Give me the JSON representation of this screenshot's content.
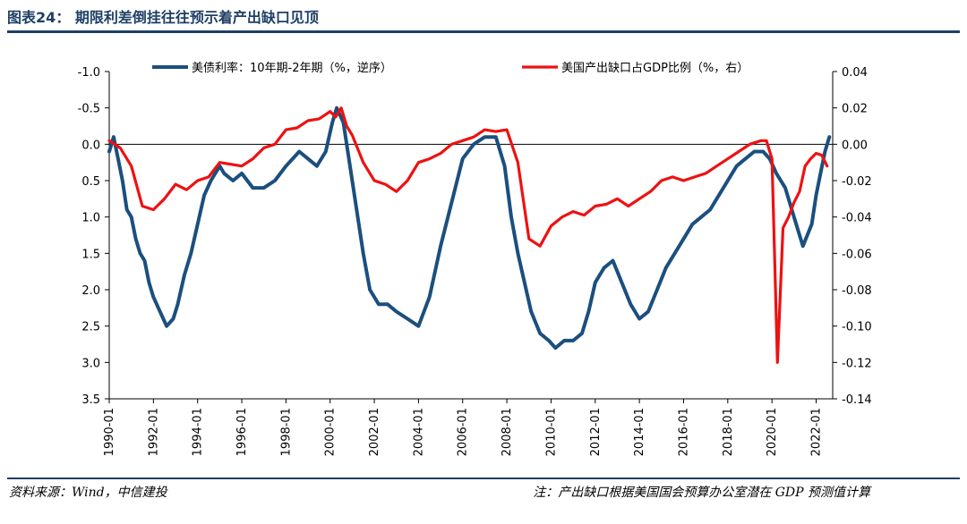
{
  "figure": {
    "title": "图表24： 期限利差倒挂往往预示着产出缺口见顶",
    "source": "资料来源：Wind，中信建投",
    "note": "注：产出缺口根据美国国会预算办公室潜在 GDP 预测值计算"
  },
  "chart_data": {
    "type": "line",
    "x_ticks": [
      "1990-01",
      "1992-01",
      "1994-01",
      "1996-01",
      "1998-01",
      "2000-01",
      "2002-01",
      "2004-01",
      "2006-01",
      "2008-01",
      "2010-01",
      "2012-01",
      "2014-01",
      "2016-01",
      "2018-01",
      "2020-01",
      "2022-01"
    ],
    "xlim": [
      1990.0,
      2022.75
    ],
    "y_left": {
      "ylim": [
        -1.0,
        3.5
      ],
      "inverted": true,
      "ticks": [
        "-1.0",
        "-0.5",
        "0.0",
        "0.5",
        "1.0",
        "1.5",
        "2.0",
        "2.5",
        "3.0",
        "3.5"
      ]
    },
    "y_right": {
      "ylim": [
        -0.14,
        0.04
      ],
      "ticks": [
        "0.04",
        "0.02",
        "0.00",
        "-0.02",
        "-0.04",
        "-0.06",
        "-0.08",
        "-0.10",
        "-0.12",
        "-0.14"
      ]
    },
    "legend_placement": "top",
    "grid": false,
    "series": [
      {
        "name": "美债利率：10年期-2年期（%，逆序）",
        "axis": "left",
        "color": "#1b4f7e",
        "x": [
          1990.0,
          1990.2,
          1990.4,
          1990.6,
          1990.8,
          1991.0,
          1991.2,
          1991.4,
          1991.6,
          1991.8,
          1992.0,
          1992.3,
          1992.6,
          1992.9,
          1993.1,
          1993.4,
          1993.7,
          1994.0,
          1994.3,
          1994.6,
          1995.0,
          1995.2,
          1995.6,
          1996.0,
          1996.5,
          1997.0,
          1997.5,
          1998.0,
          1998.3,
          1998.6,
          1999.0,
          1999.4,
          1999.8,
          2000.1,
          2000.3,
          2000.6,
          2000.9,
          2001.2,
          2001.5,
          2001.8,
          2002.2,
          2002.6,
          2003.0,
          2003.5,
          2004.0,
          2004.5,
          2005.0,
          2005.5,
          2006.0,
          2006.5,
          2007.0,
          2007.5,
          2007.9,
          2008.2,
          2008.5,
          2008.8,
          2009.1,
          2009.5,
          2009.9,
          2010.2,
          2010.6,
          2011.0,
          2011.4,
          2011.7,
          2012.0,
          2012.4,
          2012.8,
          2013.2,
          2013.6,
          2014.0,
          2014.4,
          2014.8,
          2015.2,
          2015.6,
          2016.0,
          2016.4,
          2016.8,
          2017.2,
          2017.6,
          2018.0,
          2018.4,
          2018.8,
          2019.2,
          2019.6,
          2019.9,
          2020.2,
          2020.6,
          2021.0,
          2021.4,
          2021.8,
          2022.0,
          2022.2,
          2022.4,
          2022.6
        ],
        "values": [
          0.1,
          -0.1,
          0.2,
          0.5,
          0.9,
          1.0,
          1.3,
          1.5,
          1.6,
          1.9,
          2.1,
          2.3,
          2.5,
          2.4,
          2.2,
          1.8,
          1.5,
          1.1,
          0.7,
          0.5,
          0.3,
          0.4,
          0.5,
          0.4,
          0.6,
          0.6,
          0.5,
          0.3,
          0.2,
          0.1,
          0.2,
          0.3,
          0.1,
          -0.3,
          -0.5,
          -0.3,
          0.3,
          0.9,
          1.5,
          2.0,
          2.2,
          2.2,
          2.3,
          2.4,
          2.5,
          2.1,
          1.4,
          0.8,
          0.2,
          0.0,
          -0.1,
          -0.1,
          0.3,
          1.0,
          1.5,
          1.9,
          2.3,
          2.6,
          2.7,
          2.8,
          2.7,
          2.7,
          2.6,
          2.3,
          1.9,
          1.7,
          1.6,
          1.9,
          2.2,
          2.4,
          2.3,
          2.0,
          1.7,
          1.5,
          1.3,
          1.1,
          1.0,
          0.9,
          0.7,
          0.5,
          0.3,
          0.2,
          0.1,
          0.1,
          0.2,
          0.4,
          0.6,
          1.0,
          1.4,
          1.1,
          0.7,
          0.4,
          0.1,
          -0.1
        ]
      },
      {
        "name": "美国产出缺口占GDP比例（%，右）",
        "axis": "right",
        "color": "#ee1111",
        "x": [
          1990.0,
          1990.5,
          1991.0,
          1991.5,
          1992.0,
          1992.5,
          1993.0,
          1993.5,
          1994.0,
          1994.5,
          1995.0,
          1995.5,
          1996.0,
          1996.5,
          1997.0,
          1997.5,
          1998.0,
          1998.5,
          1999.0,
          1999.5,
          2000.0,
          2000.25,
          2000.5,
          2000.75,
          2001.0,
          2001.5,
          2002.0,
          2002.5,
          2003.0,
          2003.5,
          2004.0,
          2004.5,
          2005.0,
          2005.5,
          2006.0,
          2006.5,
          2007.0,
          2007.5,
          2008.0,
          2008.5,
          2009.0,
          2009.5,
          2010.0,
          2010.5,
          2011.0,
          2011.5,
          2012.0,
          2012.5,
          2013.0,
          2013.5,
          2014.0,
          2014.5,
          2015.0,
          2015.5,
          2016.0,
          2016.5,
          2017.0,
          2017.5,
          2018.0,
          2018.5,
          2019.0,
          2019.5,
          2019.75,
          2020.0,
          2020.25,
          2020.5,
          2020.75,
          2021.0,
          2021.25,
          2021.5,
          2021.75,
          2022.0,
          2022.25,
          2022.5
        ],
        "values": [
          0.002,
          -0.002,
          -0.012,
          -0.034,
          -0.036,
          -0.03,
          -0.022,
          -0.025,
          -0.02,
          -0.018,
          -0.01,
          -0.011,
          -0.012,
          -0.008,
          -0.002,
          0.0,
          0.008,
          0.009,
          0.013,
          0.014,
          0.018,
          0.015,
          0.02,
          0.01,
          0.005,
          -0.01,
          -0.02,
          -0.022,
          -0.026,
          -0.02,
          -0.01,
          -0.008,
          -0.005,
          0.0,
          0.002,
          0.004,
          0.008,
          0.007,
          0.008,
          -0.01,
          -0.052,
          -0.056,
          -0.045,
          -0.04,
          -0.037,
          -0.039,
          -0.034,
          -0.033,
          -0.03,
          -0.034,
          -0.03,
          -0.026,
          -0.02,
          -0.018,
          -0.02,
          -0.018,
          -0.016,
          -0.012,
          -0.008,
          -0.004,
          0.0,
          0.002,
          0.002,
          -0.008,
          -0.12,
          -0.046,
          -0.04,
          -0.032,
          -0.026,
          -0.012,
          -0.008,
          -0.005,
          -0.006,
          -0.012
        ]
      }
    ]
  }
}
